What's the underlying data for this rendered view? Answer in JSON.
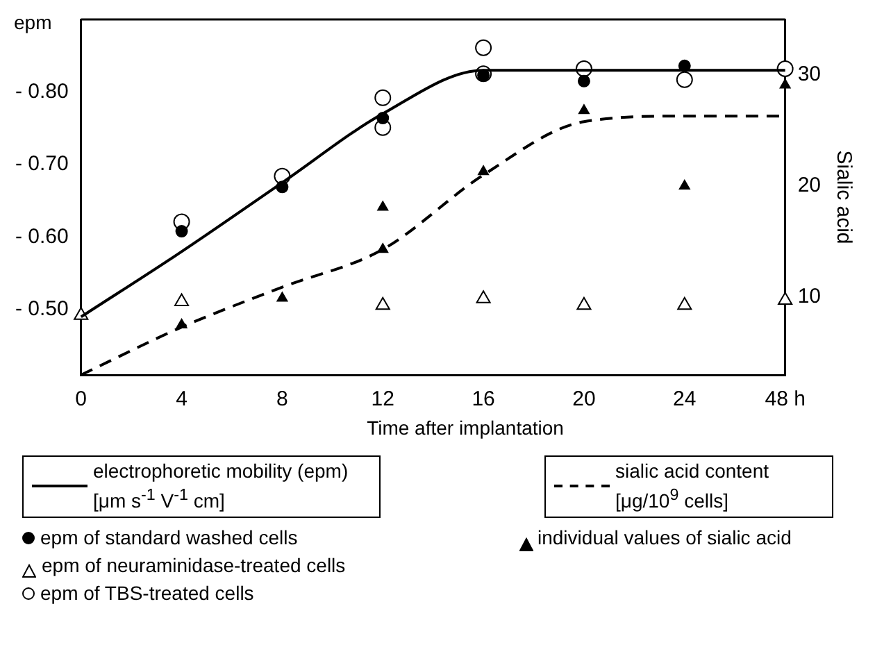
{
  "chart_data": {
    "type": "scatter",
    "xlabel": "Time after implantation",
    "ylabel": "epm",
    "y2label": "Sialic acid",
    "categories": [
      "0",
      "4",
      "8",
      "12",
      "16",
      "20",
      "24",
      "48 h"
    ],
    "ylim": [
      -0.41,
      -0.9
    ],
    "yticks": [
      {
        "value": -0.8,
        "label": "- 0.80"
      },
      {
        "value": -0.7,
        "label": "- 0.70"
      },
      {
        "value": -0.6,
        "label": "- 0.60"
      },
      {
        "value": -0.5,
        "label": "- 0.50"
      }
    ],
    "y2lim": [
      3,
      35
    ],
    "y2ticks": [
      10,
      20,
      30
    ],
    "legend": "bottom",
    "grid": false,
    "series": [
      {
        "name": "electrophoretic mobility (epm)[μm s$^{-1}$  V$^{-1}$ cm]",
        "type": "line",
        "line_style": "solid",
        "marker": "none",
        "color": "#000000",
        "values": [
          -0.49,
          -0.58,
          -0.675,
          -0.77,
          -0.83,
          -0.83,
          -0.83,
          -0.83
        ]
      },
      {
        "name": "sialic acid content [μg/10$^{9}$ cells]",
        "type": "line",
        "line_style": "dashed",
        "marker": "none",
        "axis": "y2",
        "color": "#000000",
        "values": [
          3,
          7.3,
          10.9,
          14.3,
          21,
          25.8,
          26.3,
          26.3
        ]
      },
      {
        "name": "epm of standard washed cells",
        "type": "scatter",
        "marker": "circle",
        "color": "#000000",
        "x": [
          "4",
          "8",
          "12",
          "16",
          "20",
          "24"
        ],
        "values": [
          -0.608,
          -0.669,
          -0.764,
          -0.823,
          -0.815,
          -0.836
        ]
      },
      {
        "name": "epm of neuraminidase-treated cells",
        "type": "scatter",
        "marker": "triangle",
        "color": "#ffffff",
        "x": [
          "0",
          "4",
          "12",
          "16",
          "20",
          "24",
          "48 h"
        ],
        "values": [
          -0.492,
          -0.511,
          -0.506,
          -0.515,
          -0.506,
          -0.506,
          -0.513
        ]
      },
      {
        "name": "epm of TBS-treated cells",
        "type": "scatter",
        "marker": "circle",
        "color": "#ffffff",
        "x": [
          "4",
          "8",
          "12",
          "12",
          "16",
          "16",
          "20",
          "24",
          "48 h"
        ],
        "values": [
          -0.621,
          -0.684,
          -0.792,
          -0.751,
          -0.861,
          -0.825,
          -0.832,
          -0.817,
          -0.832
        ]
      },
      {
        "name": "individual values of sialic acid",
        "type": "scatter",
        "marker": "triangle",
        "axis": "y2",
        "color": "#000000",
        "x": [
          "4",
          "8",
          "12",
          "12",
          "16",
          "20",
          "24",
          "48 h"
        ],
        "values": [
          7.5,
          9.9,
          18.1,
          14.3,
          21.3,
          26.8,
          20,
          29.1
        ]
      }
    ]
  }
}
